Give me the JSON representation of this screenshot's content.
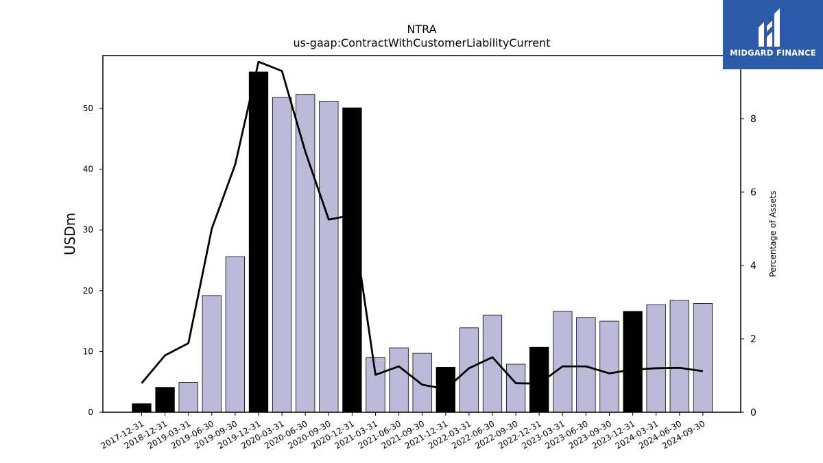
{
  "logo": {
    "text": "MIDGARD FINANCE",
    "background": "#2c5aa8",
    "icon": "midgard-logo-icon"
  },
  "chart_data": {
    "type": "bar",
    "title": "NTRA",
    "subtitle": "us-gaap:ContractWithCustomerLiabilityCurrent",
    "xlabel": "",
    "ylabel": "USDm",
    "y2label": "Percentage of Assets",
    "ylim": [
      0,
      58.7
    ],
    "y2lim": [
      0,
      9.72
    ],
    "yticks": [
      0,
      10,
      20,
      30,
      40,
      50
    ],
    "y2ticks": [
      0,
      2,
      4,
      6,
      8
    ],
    "colors": {
      "quarter_bar": "#bcbad9",
      "annual_bar": "#000000",
      "line": "#000000"
    },
    "categories": [
      "2017-12-31",
      "2018-12-31",
      "2019-03-31",
      "2019-06-30",
      "2019-09-30",
      "2019-12-31",
      "2020-03-31",
      "2020-06-30",
      "2020-09-30",
      "2020-12-31",
      "2021-03-31",
      "2021-06-30",
      "2021-09-30",
      "2021-12-31",
      "2022-03-31",
      "2022-06-30",
      "2022-09-30",
      "2022-12-31",
      "2023-03-31",
      "2023-06-30",
      "2023-09-30",
      "2023-12-31",
      "2024-03-31",
      "2024-06-30",
      "2024-09-30"
    ],
    "series": [
      {
        "type": "bar",
        "axis": "left",
        "values": [
          1.4,
          4.1,
          4.9,
          19.2,
          25.6,
          56.0,
          51.8,
          52.3,
          51.2,
          50.1,
          9.0,
          10.6,
          9.7,
          7.4,
          13.9,
          16.0,
          7.9,
          10.7,
          16.6,
          15.6,
          15.0,
          16.6,
          17.7,
          18.4,
          17.9
        ],
        "annual": [
          true,
          true,
          false,
          false,
          false,
          true,
          false,
          false,
          false,
          true,
          false,
          false,
          false,
          true,
          false,
          false,
          false,
          true,
          false,
          false,
          false,
          true,
          false,
          false,
          false
        ]
      },
      {
        "type": "line",
        "axis": "right",
        "values": [
          0.79,
          1.55,
          1.88,
          5.0,
          6.75,
          9.55,
          9.3,
          7.1,
          5.25,
          5.37,
          1.02,
          1.25,
          0.75,
          0.63,
          1.2,
          1.5,
          0.79,
          0.78,
          1.25,
          1.25,
          1.06,
          1.16,
          1.2,
          1.21,
          1.12
        ]
      }
    ]
  }
}
